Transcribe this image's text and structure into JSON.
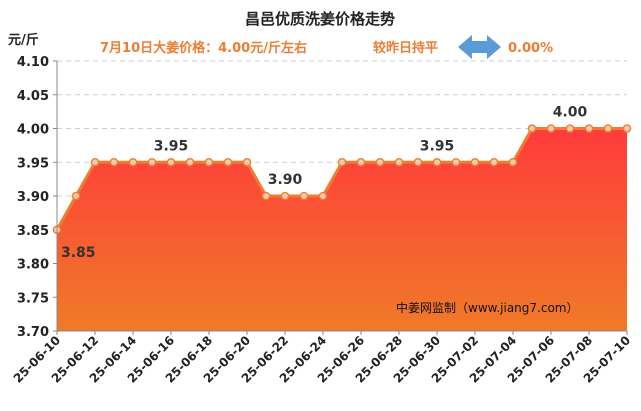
{
  "chart_data": {
    "type": "area",
    "title": "昌邑优质洗姜价格走势",
    "subtitle_left": "7月10日大姜价格：4.00元/斤左右",
    "subtitle_right_label": "较昨日持平",
    "subtitle_change": "0.00%",
    "ylabel": "元/斤",
    "ylim": [
      3.7,
      4.1
    ],
    "yticks": [
      "3.70",
      "3.75",
      "3.80",
      "3.85",
      "3.90",
      "3.95",
      "4.00",
      "4.05",
      "4.10"
    ],
    "x": [
      "25-06-10",
      "25-06-11",
      "25-06-12",
      "25-06-13",
      "25-06-14",
      "25-06-15",
      "25-06-16",
      "25-06-17",
      "25-06-18",
      "25-06-19",
      "25-06-20",
      "25-06-21",
      "25-06-22",
      "25-06-23",
      "25-06-24",
      "25-06-25",
      "25-06-26",
      "25-06-27",
      "25-06-28",
      "25-06-29",
      "25-06-30",
      "25-07-01",
      "25-07-02",
      "25-07-03",
      "25-07-04",
      "25-07-05",
      "25-07-06",
      "25-07-07",
      "25-07-08",
      "25-07-09",
      "25-07-10"
    ],
    "xtick_labels": [
      "25-06-10",
      "25-06-12",
      "25-06-14",
      "25-06-16",
      "25-06-18",
      "25-06-20",
      "25-06-22",
      "25-06-24",
      "25-06-26",
      "25-06-28",
      "25-06-30",
      "25-07-02",
      "25-07-04",
      "25-07-06",
      "25-07-08",
      "25-07-10"
    ],
    "values": [
      3.85,
      3.9,
      3.95,
      3.95,
      3.95,
      3.95,
      3.95,
      3.95,
      3.95,
      3.95,
      3.95,
      3.9,
      3.9,
      3.9,
      3.9,
      3.95,
      3.95,
      3.95,
      3.95,
      3.95,
      3.95,
      3.95,
      3.95,
      3.95,
      3.95,
      4.0,
      4.0,
      4.0,
      4.0,
      4.0,
      4.0
    ],
    "data_labels": [
      {
        "index": 0,
        "text": "3.85"
      },
      {
        "index": 6,
        "text": "3.95"
      },
      {
        "index": 12,
        "text": "3.90"
      },
      {
        "index": 20,
        "text": "3.95"
      },
      {
        "index": 27,
        "text": "4.00"
      }
    ],
    "watermark": "中姜网监制（www.jiang7.com）",
    "grid": true,
    "colors": {
      "line": "#ED7D31",
      "marker_fill": "#F8CBAD",
      "area_top": "#FF3B3B",
      "area_bottom": "#F07A28",
      "arrow": "#5B9BD5"
    }
  }
}
